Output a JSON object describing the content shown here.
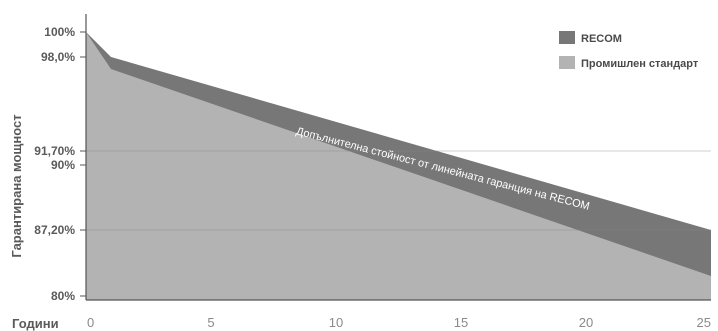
{
  "chart_data": {
    "type": "area",
    "xlabel": "Години",
    "ylabel": "Гарантирана мощност",
    "xlim": [
      0,
      25
    ],
    "x_ticks": [
      "0",
      "5",
      "10",
      "15",
      "20",
      "25"
    ],
    "y_ticks": [
      {
        "value": 100,
        "label": "100%"
      },
      {
        "value": 98,
        "label": "98,0%"
      },
      {
        "value": 91.7,
        "label": "91,70%"
      },
      {
        "value": 90,
        "label": "90%"
      },
      {
        "value": 87.2,
        "label": "87,20%"
      },
      {
        "value": 80,
        "label": "80%"
      }
    ],
    "gridlines": [
      91.7,
      87.2
    ],
    "series": [
      {
        "name": "RECOM",
        "color": "#777777",
        "x": [
          0,
          1,
          25
        ],
        "values": [
          100,
          98.0,
          87.2
        ]
      },
      {
        "name": "Промишлен стандарт",
        "color": "#b3b3b3",
        "x": [
          0,
          1,
          25
        ],
        "values": [
          100,
          97.0,
          82.5
        ]
      }
    ],
    "legend": "top-right",
    "annotation": "Допълнителна стойност от линейната гаранция на RECOM"
  }
}
